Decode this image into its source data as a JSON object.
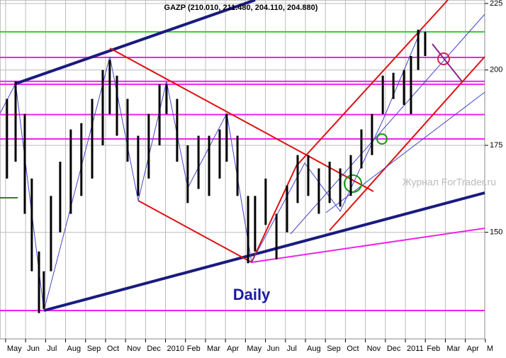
{
  "chart_data": {
    "type": "range-bar",
    "title": "GAZP (210.010, 211.480, 204.110, 204.880)",
    "annotations": [
      "Daily",
      "Журнал ForTrader.ru"
    ],
    "log_scale": true,
    "grid": true,
    "xlim": [
      -0.28,
      23.97
    ],
    "ylim": [
      124.2,
      226.4
    ],
    "xticks": [
      {
        "value": 0,
        "label": "May"
      },
      {
        "value": 1,
        "label": "Jun"
      },
      {
        "value": 2,
        "label": "Jul"
      },
      {
        "value": 3,
        "label": "Aug"
      },
      {
        "value": 4,
        "label": "Sep"
      },
      {
        "value": 5,
        "label": "Oct"
      },
      {
        "value": 6,
        "label": "Nov"
      },
      {
        "value": 7,
        "label": "Dec"
      },
      {
        "value": 8,
        "label": "2010"
      },
      {
        "value": 9,
        "label": "Feb"
      },
      {
        "value": 10,
        "label": "Mar"
      },
      {
        "value": 11,
        "label": "Apr"
      },
      {
        "value": 12,
        "label": "May"
      },
      {
        "value": 13,
        "label": "Jun"
      },
      {
        "value": 14,
        "label": "Jul"
      },
      {
        "value": 15,
        "label": "Aug"
      },
      {
        "value": 16,
        "label": "Sep"
      },
      {
        "value": 17,
        "label": "Oct"
      },
      {
        "value": 18,
        "label": "Nov"
      },
      {
        "value": 19,
        "label": "Dec"
      },
      {
        "value": 20,
        "label": "2011"
      },
      {
        "value": 21,
        "label": "Feb"
      },
      {
        "value": 22,
        "label": "Mar"
      },
      {
        "value": 23,
        "label": "Apr"
      },
      {
        "value": 24,
        "label": "M"
      }
    ],
    "yticks": [
      150,
      175,
      200,
      225
    ],
    "levels": [
      {
        "value": 214.0,
        "color": "#33cc33"
      },
      {
        "value": 204.5,
        "color": "#ee22ee"
      },
      {
        "value": 196.0,
        "color": "#ee22ee"
      },
      {
        "value": 195.0,
        "color": "#ee22ee"
      },
      {
        "value": 184.8,
        "color": "#ee22ee"
      },
      {
        "value": 177.0,
        "color": "#ee22ee"
      },
      {
        "value": 130.6,
        "color": "#ee22ee"
      }
    ],
    "x": [
      0.07,
      0.5,
      0.96,
      1.31,
      1.67,
      1.91,
      2.27,
      2.73,
      3.26,
      3.79,
      4.33,
      4.86,
      5.21,
      5.57,
      6.1,
      6.63,
      7.16,
      7.7,
      8.05,
      8.58,
      9.11,
      9.65,
      10.18,
      10.71,
      11.06,
      11.6,
      12.13,
      12.48,
      13.01,
      13.55,
      14.08,
      14.61,
      15.14,
      15.67,
      16.21,
      16.74,
      17.27,
      17.8,
      18.33,
      18.87,
      19.4,
      19.93,
      20.28,
      20.64,
      20.99
    ],
    "series": [
      {
        "name": "GAZP",
        "color": "#000000",
        "low": [
          165,
          170,
          155,
          140,
          130,
          131,
          140,
          150,
          155,
          160,
          165,
          175,
          185,
          178,
          170,
          160,
          165,
          175,
          185,
          170,
          158,
          162,
          160,
          165,
          170,
          160,
          142,
          145,
          152,
          143,
          150,
          158,
          160,
          155,
          158,
          157,
          160,
          168,
          172,
          185,
          190,
          188,
          185,
          200,
          205
        ],
        "high": [
          190,
          196,
          185,
          165,
          145,
          140,
          160,
          170,
          180,
          182,
          190,
          200,
          203.6,
          198,
          190,
          178,
          185,
          195,
          195,
          190,
          175,
          178,
          178,
          180,
          185,
          178,
          160,
          160,
          165,
          155,
          163,
          172,
          172,
          168,
          170,
          168,
          172,
          180,
          185,
          198,
          199,
          200,
          205,
          214.8,
          214
        ]
      }
    ]
  }
}
